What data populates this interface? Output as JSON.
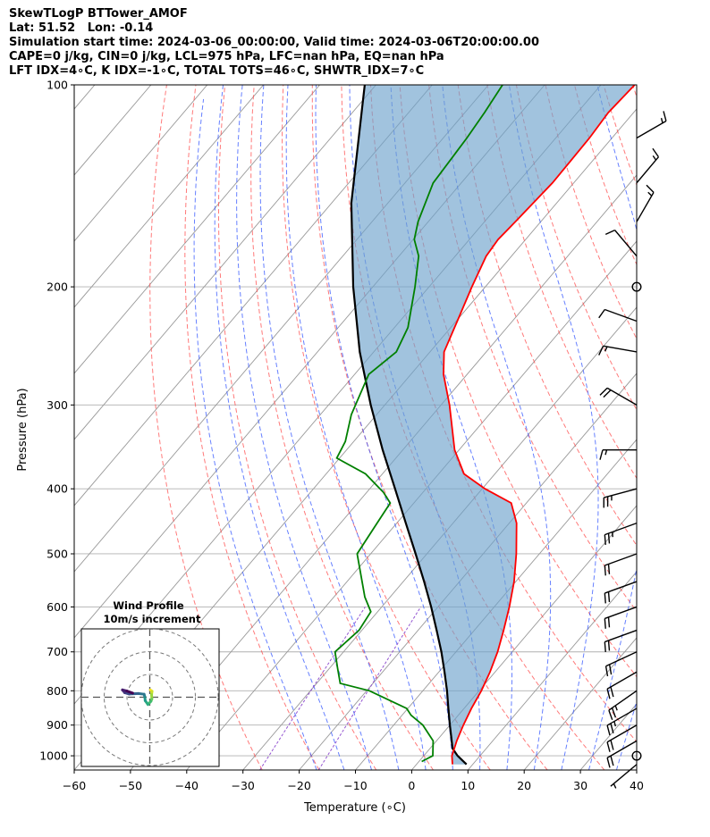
{
  "header": {
    "line1": "SkewTLogP BTTower_AMOF",
    "line2": "Lat: 51.52   Lon: -0.14",
    "line3": "Simulation start time: 2024-03-06_00:00:00, Valid time: 2024-03-06T20:00:00.00",
    "line4": "CAPE=0 j/kg, CIN=0 j/kg, LCL=975 hPa, LFC=nan hPa, EQ=nan hPa",
    "line5": "LFT IDX=4∘C, K IDX=-1∘C, TOTAL TOTS=46∘C, SHWTR_IDX=7∘C"
  },
  "colors": {
    "temperature": "#ff0000",
    "dewpoint": "#008000",
    "parcel": "#000000",
    "cin_fill": "#6fa3cc",
    "dry_adiabat": "#ff4d4d",
    "moist_adiabat": "#3355ff",
    "mixing_ratio": "#8844cc",
    "isotherm": "#999999",
    "isobar": "#b0b0b0"
  },
  "chart_data": {
    "type": "skew-t log-p",
    "xlabel": "Temperature (∘C)",
    "ylabel": "Pressure (hPa)",
    "xlim": [
      -60,
      40
    ],
    "ylim": [
      1050,
      100
    ],
    "y_scale": "log",
    "x_ticks": [
      "−60",
      "−50",
      "−40",
      "−30",
      "−20",
      "−10",
      "0",
      "10",
      "20",
      "30",
      "40"
    ],
    "y_ticks": [
      "100",
      "200",
      "300",
      "400",
      "500",
      "600",
      "700",
      "800",
      "900",
      "1000"
    ],
    "grid": true,
    "temperature_profile": [
      [
        1030,
        6.4
      ],
      [
        1000,
        5.0
      ],
      [
        950,
        3.6
      ],
      [
        900,
        2.4
      ],
      [
        850,
        1.3
      ],
      [
        800,
        0.4
      ],
      [
        750,
        -0.9
      ],
      [
        700,
        -2.6
      ],
      [
        650,
        -4.8
      ],
      [
        600,
        -7.3
      ],
      [
        550,
        -10.3
      ],
      [
        500,
        -14.1
      ],
      [
        450,
        -18.7
      ],
      [
        420,
        -22.7
      ],
      [
        400,
        -29.5
      ],
      [
        380,
        -35.5
      ],
      [
        350,
        -40.8
      ],
      [
        300,
        -48.5
      ],
      [
        270,
        -54.2
      ],
      [
        250,
        -57.5
      ],
      [
        225,
        -59.8
      ],
      [
        200,
        -62.4
      ],
      [
        180,
        -64.5
      ],
      [
        170,
        -64.9
      ],
      [
        160,
        -64.5
      ],
      [
        140,
        -63.8
      ],
      [
        120,
        -64.0
      ],
      [
        110,
        -64.5
      ],
      [
        100,
        -64.0
      ]
    ],
    "dewpoint_profile": [
      [
        1020,
        0.5
      ],
      [
        1000,
        1.6
      ],
      [
        950,
        -0.6
      ],
      [
        900,
        -4.8
      ],
      [
        870,
        -8.4
      ],
      [
        850,
        -10.2
      ],
      [
        800,
        -19.5
      ],
      [
        780,
        -25.8
      ],
      [
        740,
        -28.6
      ],
      [
        700,
        -31.5
      ],
      [
        650,
        -30.5
      ],
      [
        610,
        -31.2
      ],
      [
        580,
        -34.5
      ],
      [
        500,
        -42.4
      ],
      [
        450,
        -43.5
      ],
      [
        420,
        -44.2
      ],
      [
        405,
        -47.0
      ],
      [
        380,
        -53.0
      ],
      [
        360,
        -60.5
      ],
      [
        340,
        -61.5
      ],
      [
        310,
        -64.5
      ],
      [
        270,
        -67.5
      ],
      [
        250,
        -66.0
      ],
      [
        230,
        -67.6
      ],
      [
        200,
        -72.5
      ],
      [
        180,
        -76.5
      ],
      [
        170,
        -79.8
      ],
      [
        160,
        -81.8
      ],
      [
        140,
        -85.0
      ],
      [
        120,
        -85.8
      ],
      [
        110,
        -86.5
      ],
      [
        100,
        -87.5
      ]
    ],
    "parcel_profile": [
      [
        1030,
        8.9
      ],
      [
        1000,
        6.0
      ],
      [
        975,
        4.0
      ],
      [
        900,
        0.0
      ],
      [
        850,
        -2.8
      ],
      [
        800,
        -5.7
      ],
      [
        750,
        -9.0
      ],
      [
        700,
        -12.6
      ],
      [
        650,
        -16.7
      ],
      [
        600,
        -21.2
      ],
      [
        550,
        -26.3
      ],
      [
        500,
        -32.0
      ],
      [
        450,
        -38.4
      ],
      [
        400,
        -45.5
      ],
      [
        350,
        -53.6
      ],
      [
        300,
        -62.5
      ],
      [
        250,
        -72.5
      ],
      [
        200,
        -83.5
      ],
      [
        150,
        -96.5
      ],
      [
        100,
        -112.0
      ]
    ],
    "wind_barbs": [
      {
        "p": 1030,
        "speed_kt": 5,
        "dir": 230
      },
      {
        "p": 1000,
        "calm": true
      },
      {
        "p": 950,
        "speed_kt": 20,
        "dir": 240
      },
      {
        "p": 900,
        "speed_kt": 20,
        "dir": 240
      },
      {
        "p": 850,
        "speed_kt": 25,
        "dir": 240
      },
      {
        "p": 800,
        "speed_kt": 25,
        "dir": 235
      },
      {
        "p": 750,
        "speed_kt": 20,
        "dir": 240
      },
      {
        "p": 700,
        "speed_kt": 20,
        "dir": 245
      },
      {
        "p": 650,
        "speed_kt": 20,
        "dir": 250
      },
      {
        "p": 600,
        "speed_kt": 20,
        "dir": 250
      },
      {
        "p": 550,
        "speed_kt": 20,
        "dir": 250
      },
      {
        "p": 500,
        "speed_kt": 20,
        "dir": 250
      },
      {
        "p": 450,
        "speed_kt": 25,
        "dir": 250
      },
      {
        "p": 400,
        "speed_kt": 25,
        "dir": 255
      },
      {
        "p": 350,
        "speed_kt": 15,
        "dir": 270
      },
      {
        "p": 300,
        "speed_kt": 20,
        "dir": 300
      },
      {
        "p": 250,
        "speed_kt": 15,
        "dir": 280
      },
      {
        "p": 225,
        "speed_kt": 10,
        "dir": 290
      },
      {
        "p": 200,
        "calm": true
      },
      {
        "p": 180,
        "speed_kt": 10,
        "dir": 320
      },
      {
        "p": 160,
        "speed_kt": 15,
        "dir": 30
      },
      {
        "p": 140,
        "speed_kt": 15,
        "dir": 40
      },
      {
        "p": 120,
        "speed_kt": 15,
        "dir": 60
      }
    ],
    "hodograph": {
      "title": "Wind Profile",
      "subtitle": "10m/s increment",
      "rings": [
        10,
        20,
        30
      ],
      "points_uv": [
        [
          0.3,
          3.2
        ],
        [
          1.0,
          2.6
        ],
        [
          0.8,
          1.2
        ],
        [
          0.9,
          -0.8
        ],
        [
          0.5,
          -1.8
        ],
        [
          -0.8,
          -3.2
        ],
        [
          -2.0,
          -1.5
        ],
        [
          -2.2,
          0.3
        ],
        [
          -2.5,
          1.3
        ],
        [
          -5.0,
          1.6
        ],
        [
          -9.0,
          1.4
        ],
        [
          -11.0,
          2.0
        ],
        [
          -12.0,
          3.2
        ],
        [
          -10.0,
          2.7
        ],
        [
          -7.5,
          1.8
        ]
      ]
    }
  }
}
